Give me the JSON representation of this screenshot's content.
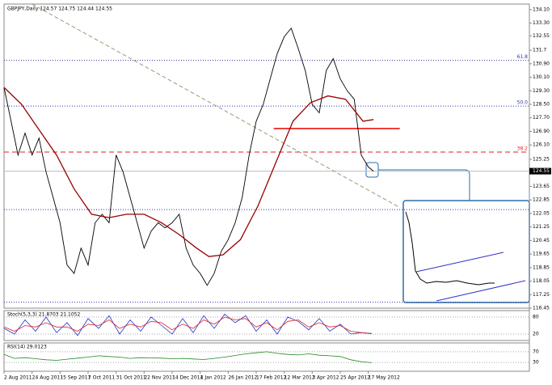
{
  "chart_data": {
    "type": "line",
    "title": "GBPJPY,Daily  124.57 124.75 124.44 124.55",
    "xlim": [
      0,
      300
    ],
    "ylim": [
      116.45,
      134.43
    ],
    "xticks": [
      {
        "value": 0,
        "label": "2 Aug 2011"
      },
      {
        "value": 16,
        "label": "24 Aug 2011"
      },
      {
        "value": 32,
        "label": "15 Sep 2011"
      },
      {
        "value": 48,
        "label": "7 Oct 2011"
      },
      {
        "value": 64,
        "label": "31 Oct 2011"
      },
      {
        "value": 80,
        "label": "22 Nov 2011"
      },
      {
        "value": 96,
        "label": "14 Dec 2011"
      },
      {
        "value": 112,
        "label": "4 Jan 2012"
      },
      {
        "value": 128,
        "label": "26 Jan 2012"
      },
      {
        "value": 144,
        "label": "17 Feb 2012"
      },
      {
        "value": 160,
        "label": "12 Mar 2012"
      },
      {
        "value": 176,
        "label": "3 Apr 2012"
      },
      {
        "value": 192,
        "label": "25 Apr 2012"
      },
      {
        "value": 208,
        "label": "17 May 2012"
      }
    ],
    "yticks": [
      {
        "value": 134.1,
        "label": "134.10"
      },
      {
        "value": 133.3,
        "label": "133.30"
      },
      132.55,
      131.7,
      {
        "value": 130.9,
        "label": "130.90"
      },
      {
        "value": 130.1,
        "label": "130.10"
      },
      {
        "value": 129.3,
        "label": "129.30"
      },
      {
        "value": 128.5,
        "label": "128.50"
      },
      {
        "value": 127.7,
        "label": "127.70"
      },
      {
        "value": 126.9,
        "label": "126.90"
      },
      {
        "value": 126.1,
        "label": "126.10"
      },
      125.25,
      {
        "value": 123.65,
        "label": "123.65"
      },
      122.85,
      122.05,
      121.25,
      120.45,
      119.65,
      118.85,
      118.05,
      117.25,
      116.45
    ],
    "current_price": {
      "value": 124.55,
      "label": "124.55"
    },
    "series": [
      {
        "name": "Close",
        "color": "#000000",
        "x": [
          0,
          4,
          8,
          12,
          16,
          20,
          24,
          28,
          32,
          36,
          40,
          44,
          48,
          52,
          56,
          60,
          64,
          68,
          72,
          76,
          80,
          84,
          88,
          92,
          96,
          100,
          104,
          108,
          112,
          116,
          120,
          124,
          128,
          132,
          136,
          140,
          144,
          148,
          152,
          156,
          160,
          164,
          168,
          172,
          176,
          180,
          184,
          188,
          192,
          196,
          200,
          204,
          208,
          211
        ],
        "values": [
          129.5,
          127.5,
          125.5,
          126.8,
          125.5,
          126.5,
          124.5,
          123,
          121.5,
          119,
          118.5,
          120,
          119,
          121.5,
          122,
          121.5,
          125.5,
          124.5,
          123,
          121.5,
          120,
          121,
          121.5,
          121.2,
          121.5,
          122,
          120,
          119,
          118.5,
          117.8,
          118.5,
          119.8,
          120.5,
          121.5,
          123,
          125.5,
          127.5,
          128.5,
          130,
          131.5,
          132.5,
          133,
          131.8,
          130.5,
          128.5,
          128,
          130.5,
          131.2,
          130,
          129.3,
          128.8,
          125.5,
          124.8,
          124.55
        ]
      },
      {
        "name": "MA",
        "color": "#990000",
        "x": [
          0,
          10,
          20,
          30,
          40,
          50,
          60,
          70,
          80,
          90,
          100,
          110,
          117,
          125,
          135,
          145,
          155,
          165,
          175,
          185,
          195,
          205,
          211
        ],
        "values": [
          129.5,
          128.5,
          127,
          125.5,
          123.5,
          122,
          121.8,
          122,
          122,
          121.5,
          120.8,
          120,
          119.5,
          119.6,
          120.5,
          122.5,
          125,
          127.5,
          128.6,
          129,
          128.8,
          127.5,
          127.6
        ]
      }
    ],
    "levels": [
      {
        "value": 131.1,
        "label": "61.8",
        "color": "#3333aa",
        "dash": "1,2"
      },
      {
        "value": 128.4,
        "label": "50.0",
        "color": "#3333aa",
        "dash": "1,2"
      },
      {
        "value": 125.68,
        "label": "38.2",
        "color": "#dd2222",
        "dash": "6,4"
      },
      {
        "value": 122.28,
        "color": "#3333aa",
        "dash": "1,2"
      },
      {
        "value": 116.8,
        "color": "#3333aa",
        "dash": "1,2"
      }
    ],
    "support": {
      "value": 127.07,
      "x": [
        154,
        226
      ],
      "color": "#ee0000"
    },
    "trendline": {
      "x": [
        16,
        226
      ],
      "y": [
        134.43,
        122.4
      ],
      "color": "#999977"
    },
    "stoch": {
      "title": "Stoch(5,3,3) 21.8703 21.1052",
      "ylim": [
        0,
        100
      ],
      "yticks": [
        80,
        20
      ],
      "x": [
        0,
        6,
        12,
        18,
        24,
        30,
        36,
        42,
        48,
        54,
        60,
        66,
        72,
        78,
        84,
        90,
        96,
        102,
        108,
        114,
        120,
        126,
        132,
        138,
        144,
        150,
        156,
        162,
        168,
        174,
        180,
        186,
        192,
        198,
        204,
        210
      ],
      "series": [
        {
          "name": "Main",
          "color": "#2233cc",
          "values": [
            40,
            20,
            70,
            30,
            80,
            25,
            60,
            15,
            75,
            40,
            85,
            20,
            70,
            30,
            80,
            50,
            20,
            75,
            25,
            85,
            40,
            90,
            60,
            85,
            30,
            70,
            20,
            80,
            65,
            35,
            75,
            30,
            55,
            20,
            25,
            22
          ]
        },
        {
          "name": "Signal",
          "color": "#dd2222",
          "values": [
            45,
            30,
            50,
            45,
            60,
            45,
            45,
            30,
            55,
            50,
            70,
            40,
            55,
            45,
            65,
            60,
            35,
            55,
            40,
            70,
            55,
            80,
            70,
            75,
            45,
            60,
            35,
            65,
            70,
            45,
            60,
            45,
            50,
            30,
            25,
            21
          ]
        }
      ]
    },
    "rsi": {
      "title": "RSI(14) 29.0123",
      "ylim": [
        0,
        100
      ],
      "yticks": [
        70,
        30
      ],
      "color": "#228822",
      "x": [
        0,
        6,
        12,
        18,
        24,
        30,
        36,
        42,
        48,
        54,
        60,
        66,
        72,
        78,
        84,
        90,
        96,
        102,
        108,
        114,
        120,
        126,
        132,
        138,
        144,
        150,
        156,
        162,
        168,
        174,
        180,
        186,
        192,
        198,
        204,
        210
      ],
      "values": [
        60,
        45,
        48,
        44,
        40,
        38,
        42,
        46,
        50,
        55,
        52,
        50,
        45,
        48,
        47,
        46,
        44,
        45,
        43,
        41,
        45,
        50,
        56,
        62,
        66,
        70,
        64,
        60,
        58,
        62,
        57,
        55,
        52,
        40,
        33,
        29
      ]
    }
  }
}
